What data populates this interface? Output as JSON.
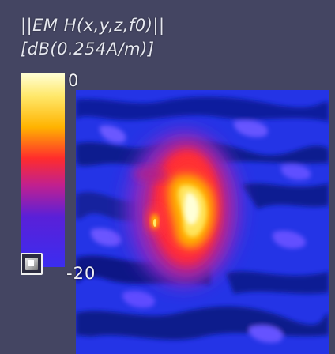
{
  "legend": {
    "title_line1": "||EM H(x,y,z,f0)||",
    "title_line2": "[dB(0.254A/m)]",
    "max_label": "0",
    "min_label": "-20"
  },
  "colors": {
    "background": "#444562",
    "colormap": [
      "#3b2df0",
      "#5a20d8",
      "#c02090",
      "#ff2c2c",
      "#ffb300",
      "#ffe86a",
      "#ffffd8"
    ]
  },
  "icons": {
    "toggle": "colorbar-toggle-icon"
  }
}
